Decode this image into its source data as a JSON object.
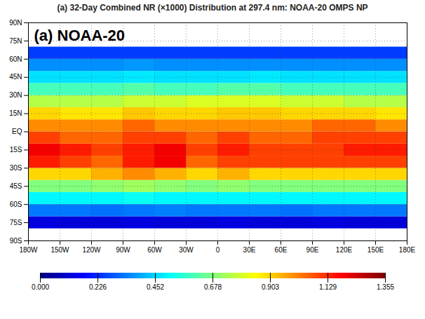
{
  "chart_data": {
    "type": "heatmap",
    "title": "(a) 32-Day Combined NR (×1000) Distribution at 297.4 nm: NOAA-20 OMPS NP",
    "annotations": [
      "(a) NOAA-20"
    ],
    "xlim": [
      -180,
      180
    ],
    "xticks": [
      {
        "value": -180,
        "label": "180W"
      },
      {
        "value": -150,
        "label": "150W"
      },
      {
        "value": -120,
        "label": "120W"
      },
      {
        "value": -90,
        "label": "90W"
      },
      {
        "value": -60,
        "label": "60W"
      },
      {
        "value": -30,
        "label": "30W"
      },
      0,
      {
        "value": 30,
        "label": "30E"
      },
      {
        "value": 60,
        "label": "60E"
      },
      {
        "value": 90,
        "label": "90E"
      },
      {
        "value": 120,
        "label": "120E"
      },
      {
        "value": 150,
        "label": "150E"
      },
      {
        "value": 180,
        "label": "180E"
      }
    ],
    "ylim": [
      -90,
      90
    ],
    "yticks": [
      {
        "value": -90,
        "label": "90S"
      },
      {
        "value": -75,
        "label": "75S"
      },
      {
        "value": -60,
        "label": "60S"
      },
      {
        "value": -45,
        "label": "45S"
      },
      {
        "value": -30,
        "label": "30S"
      },
      {
        "value": -15,
        "label": "15S"
      },
      {
        "value": 0,
        "label": "EQ"
      },
      {
        "value": 15,
        "label": "15N"
      },
      {
        "value": 30,
        "label": "30N"
      },
      {
        "value": 45,
        "label": "45N"
      },
      {
        "value": 60,
        "label": "60N"
      },
      {
        "value": 75,
        "label": "75N"
      },
      {
        "value": 90,
        "label": "90N"
      }
    ],
    "grid": true,
    "cells": {
      "lon_edges": [
        -180,
        -150,
        -120,
        -90,
        -60,
        -30,
        0,
        30,
        60,
        90,
        120,
        150,
        180
      ],
      "lat_edges": [
        -80,
        -70,
        -60,
        -50,
        -40,
        -30,
        -20,
        -10,
        0,
        10,
        20,
        30,
        40,
        50,
        60,
        70
      ],
      "values": [
        [
          0.13,
          0.12,
          0.12,
          0.13,
          0.12,
          0.12,
          0.13,
          0.12,
          0.12,
          0.13,
          0.12,
          0.12
        ],
        [
          0.33,
          0.33,
          0.32,
          0.33,
          0.34,
          0.33,
          0.33,
          0.33,
          0.32,
          0.33,
          0.33,
          0.33
        ],
        [
          0.5,
          0.5,
          0.5,
          0.52,
          0.5,
          0.5,
          0.5,
          0.5,
          0.5,
          0.5,
          0.5,
          0.5
        ],
        [
          0.68,
          0.68,
          0.7,
          0.72,
          0.7,
          0.68,
          0.7,
          0.68,
          0.68,
          0.68,
          0.68,
          0.68
        ],
        [
          0.9,
          0.9,
          0.95,
          1.0,
          0.95,
          0.9,
          0.95,
          0.9,
          0.9,
          0.9,
          0.9,
          0.9
        ],
        [
          1.15,
          1.1,
          1.05,
          1.15,
          1.2,
          1.05,
          1.1,
          1.1,
          1.1,
          1.1,
          1.1,
          1.1
        ],
        [
          1.2,
          1.15,
          1.1,
          1.15,
          1.2,
          1.1,
          1.15,
          1.1,
          1.1,
          1.1,
          1.15,
          1.15
        ],
        [
          1.1,
          1.05,
          1.05,
          1.1,
          1.1,
          1.05,
          1.1,
          1.05,
          1.05,
          1.1,
          1.1,
          1.1
        ],
        [
          1.0,
          1.0,
          1.0,
          1.05,
          1.0,
          1.0,
          1.0,
          1.0,
          1.0,
          1.05,
          1.05,
          1.0
        ],
        [
          0.9,
          0.88,
          0.88,
          0.92,
          0.9,
          0.9,
          0.92,
          0.92,
          0.9,
          0.9,
          0.9,
          0.88
        ],
        [
          0.75,
          0.75,
          0.75,
          0.78,
          0.78,
          0.8,
          0.8,
          0.8,
          0.78,
          0.78,
          0.75,
          0.75
        ],
        [
          0.6,
          0.6,
          0.6,
          0.62,
          0.6,
          0.6,
          0.62,
          0.62,
          0.6,
          0.6,
          0.6,
          0.6
        ],
        [
          0.47,
          0.47,
          0.47,
          0.48,
          0.47,
          0.47,
          0.47,
          0.48,
          0.47,
          0.47,
          0.47,
          0.47
        ],
        [
          0.36,
          0.36,
          0.36,
          0.37,
          0.36,
          0.36,
          0.36,
          0.36,
          0.36,
          0.36,
          0.36,
          0.36
        ],
        [
          0.25,
          0.25,
          0.25,
          0.25,
          0.25,
          0.25,
          0.25,
          0.25,
          0.25,
          0.25,
          0.25,
          0.25
        ]
      ]
    },
    "colorbar": {
      "range": [
        0,
        1.355
      ],
      "ticks": [
        {
          "value": 0,
          "label": "0.000"
        },
        0.226,
        0.452,
        0.678,
        0.903,
        1.129,
        1.355
      ]
    }
  }
}
